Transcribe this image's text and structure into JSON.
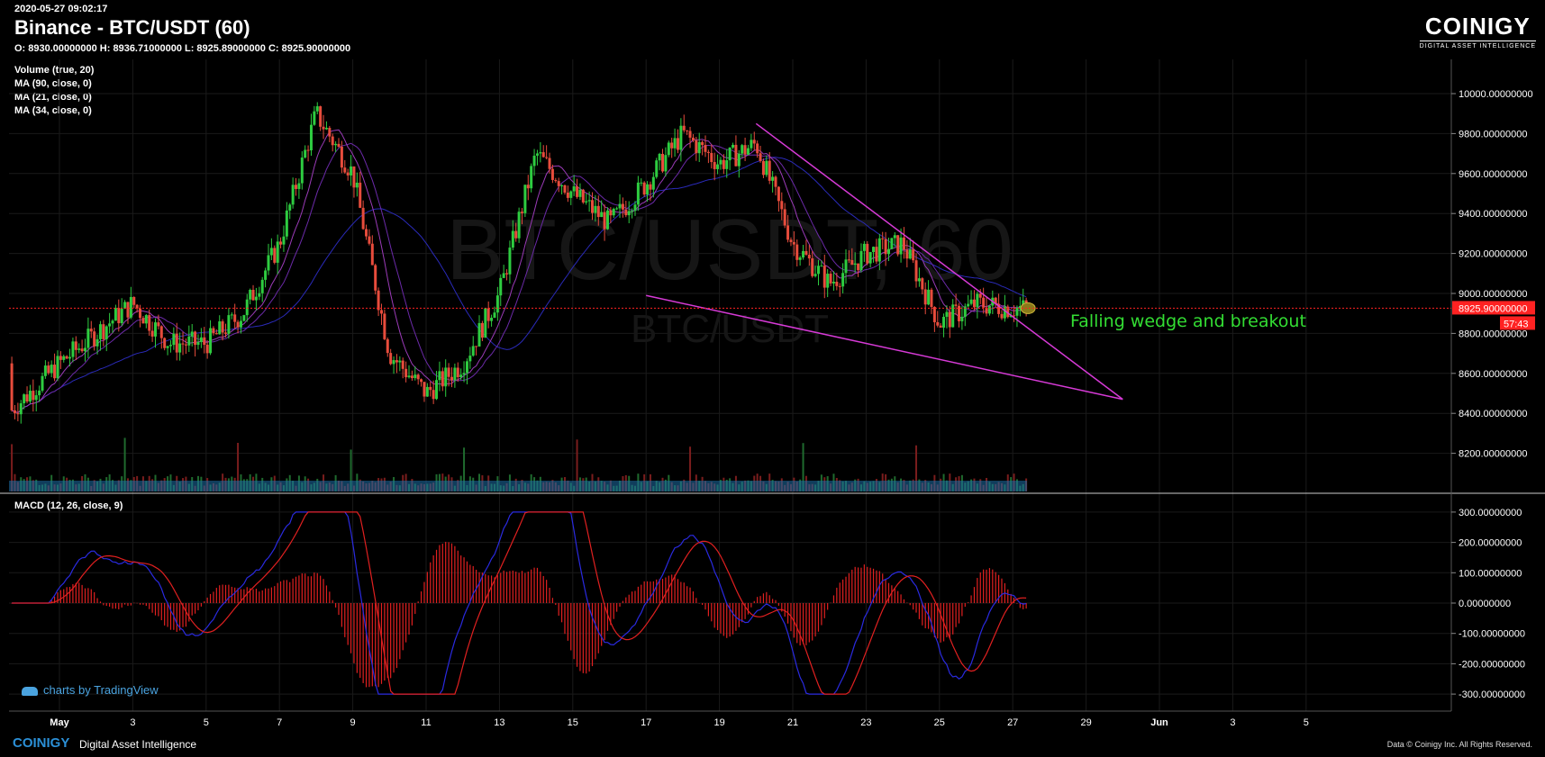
{
  "header": {
    "timestamp": "2020-05-27 09:02:17",
    "title": "Binance - BTC/USDT (60)",
    "ohlc": "O: 8930.00000000 H: 8936.71000000 L: 8925.89000000 C: 8925.90000000"
  },
  "indicators": [
    "Volume (true, 20)",
    "MA (90, close, 0)",
    "MA (21, close, 0)",
    "MA (34, close, 0)"
  ],
  "watermark": {
    "main": "BTC/USDT, 60",
    "sub": "BTC/USDT"
  },
  "logo": {
    "name": "COINIGY",
    "sub": "DIGITAL ASSET INTELLIGENCE"
  },
  "footer": {
    "brand": "COINIGY",
    "tagline": "Digital Asset Intelligence",
    "copyright": "Data © Coinigy Inc.  All Rights Reserved."
  },
  "tradingview_badge": "charts by TradingView",
  "colors": {
    "up": "#2ecc40",
    "down": "#e74c3c",
    "trendline": "#d63ad6",
    "annotation": "#33dd33",
    "price_line": "#ff2222",
    "volume": "#1e6fa8"
  },
  "chart_data": [
    {
      "type": "candlestick",
      "pane": "price",
      "y_ticks": [
        "10000.00000000",
        "9800.00000000",
        "9600.00000000",
        "9400.00000000",
        "9200.00000000",
        "9000.00000000",
        "8800.00000000",
        "8600.00000000",
        "8400.00000000",
        "8200.00000000"
      ],
      "ylim": [
        8100,
        10000
      ],
      "x_ticks": [
        "May",
        "3",
        "5",
        "7",
        "9",
        "11",
        "13",
        "15",
        "17",
        "19",
        "21",
        "23",
        "25",
        "27",
        "29",
        "Jun",
        "3",
        "5"
      ],
      "last_price_label": "8925.90000000",
      "countdown_label": "57:43",
      "annotation": "Falling wedge and breakout",
      "wedge_upper": [
        [
          "May 20",
          9850
        ],
        [
          "May 30",
          8470
        ]
      ],
      "wedge_lower": [
        [
          "May 17",
          8990
        ],
        [
          "May 30",
          8470
        ]
      ],
      "close_path": [
        [
          "May 1",
          8650
        ],
        [
          "May 2",
          8800
        ],
        [
          "May 3",
          8950
        ],
        [
          "May 4",
          8750
        ],
        [
          "May 5",
          8750
        ],
        [
          "May 6",
          8900
        ],
        [
          "May 7",
          9250
        ],
        [
          "May 8",
          9900
        ],
        [
          "May 9",
          9600
        ],
        [
          "May 10",
          8700
        ],
        [
          "May 11",
          8500
        ],
        [
          "May 12",
          8650
        ],
        [
          "May 13",
          9000
        ],
        [
          "May 14",
          9700
        ],
        [
          "May 15",
          9500
        ],
        [
          "May 16",
          9350
        ],
        [
          "May 17",
          9550
        ],
        [
          "May 18",
          9800
        ],
        [
          "May 19",
          9650
        ],
        [
          "May 20",
          9750
        ],
        [
          "May 21",
          9250
        ],
        [
          "May 22",
          9050
        ],
        [
          "May 23",
          9200
        ],
        [
          "May 24",
          9250
        ],
        [
          "May 25",
          8850
        ],
        [
          "May 26",
          8950
        ],
        [
          "May 27",
          8926
        ]
      ]
    },
    {
      "type": "line",
      "pane": "macd",
      "label": "MACD (12, 26, close, 9)",
      "y_ticks": [
        "300.00000000",
        "200.00000000",
        "100.00000000",
        "0.00000000",
        "-100.00000000",
        "-200.00000000",
        "-300.00000000"
      ],
      "ylim": [
        -300,
        300
      ]
    }
  ]
}
